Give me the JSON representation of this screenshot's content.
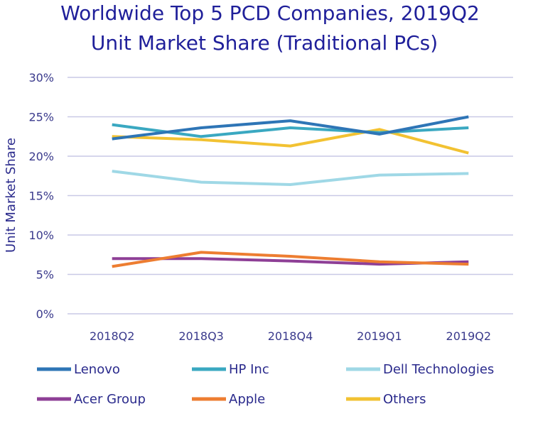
{
  "chart_data": {
    "type": "line",
    "title_line1": "Worldwide Top 5 PCD Companies, 2019Q2",
    "title_line2": "Unit Market Share (Traditional PCs)",
    "xlabel": "",
    "ylabel": "Unit Market Share",
    "categories": [
      "2018Q2",
      "2018Q3",
      "2018Q4",
      "2019Q1",
      "2019Q2"
    ],
    "yticks": [
      "0%",
      "5%",
      "10%",
      "15%",
      "20%",
      "25%",
      "30%"
    ],
    "ylim": [
      0,
      30
    ],
    "grid": true,
    "legend_position": "bottom",
    "series": [
      {
        "name": "Lenovo",
        "color": "#2e75b6",
        "values": [
          22.2,
          23.6,
          24.5,
          22.8,
          25.0
        ]
      },
      {
        "name": "HP Inc",
        "color": "#3aa8c1",
        "values": [
          24.0,
          22.5,
          23.6,
          23.0,
          23.6
        ]
      },
      {
        "name": "Dell Technologies",
        "color": "#9fd8e6",
        "values": [
          18.1,
          16.7,
          16.4,
          17.6,
          17.8
        ]
      },
      {
        "name": "Acer Group",
        "color": "#8e3f96",
        "values": [
          7.0,
          7.0,
          6.7,
          6.3,
          6.6
        ]
      },
      {
        "name": "Apple",
        "color": "#ed7d31",
        "values": [
          6.0,
          7.8,
          7.3,
          6.6,
          6.3
        ]
      },
      {
        "name": "Others",
        "color": "#f2c232",
        "values": [
          22.5,
          22.1,
          21.3,
          23.4,
          20.4
        ]
      }
    ]
  }
}
